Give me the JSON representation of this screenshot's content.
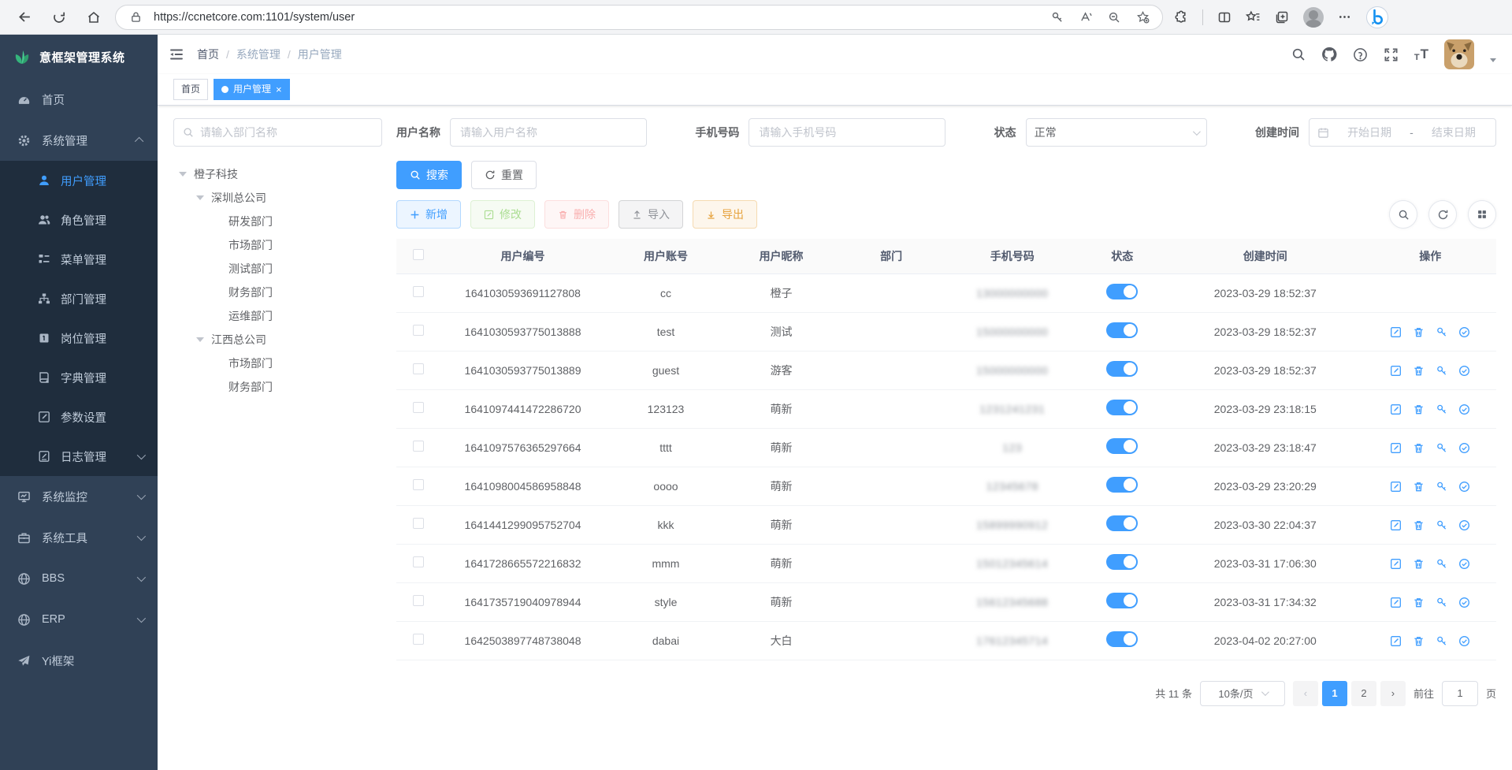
{
  "browser": {
    "url": "https://ccnetcore.com:1101/system/user"
  },
  "colors": {
    "accent": "#409eff",
    "sidebar_bg": "#304156",
    "submenu_bg": "#1f2d3d",
    "success": "#67c23a",
    "danger": "#f56c6c",
    "warning": "#e6a23c",
    "info": "#909399",
    "toggle_on": "#409eff",
    "logo_green": "#35b57c"
  },
  "icons": {
    "logo-icon": "green-leaf",
    "dashboard-icon": "gauge",
    "gear-icon": "gear",
    "user-icon": "person",
    "roles-icon": "people",
    "menu-icon": "tree-list",
    "dept-icon": "org-chart",
    "post-icon": "badge",
    "dict-icon": "book",
    "param-icon": "pencil-square",
    "log-icon": "doc-pencil",
    "monitor-icon": "screen",
    "tools-icon": "briefcase",
    "globe-icon": "globe",
    "plane-icon": "paper-plane",
    "search-icon": "magnifier",
    "refresh-icon": "circular-arrows",
    "grid-icon": "four-squares",
    "plus-icon": "plus",
    "edit-icon": "pencil-square",
    "delete-icon": "trash",
    "import-icon": "arrow-up-line",
    "export-icon": "arrow-down-line",
    "key-icon": "key",
    "check-circle-icon": "circle-check",
    "calendar-icon": "calendar",
    "lock-icon": "padlock",
    "github-icon": "octocat",
    "help-icon": "question-circle",
    "fullscreen-icon": "corner-arrows",
    "fontsize-icon": "tT",
    "copilot-icon": "bing-b"
  },
  "sidebar": {
    "logo_title": "意框架管理系统",
    "items": [
      {
        "label": "首页"
      },
      {
        "label": "系统管理",
        "expanded": true,
        "children": [
          {
            "label": "用户管理",
            "active": true
          },
          {
            "label": "角色管理"
          },
          {
            "label": "菜单管理"
          },
          {
            "label": "部门管理"
          },
          {
            "label": "岗位管理"
          },
          {
            "label": "字典管理"
          },
          {
            "label": "参数设置"
          },
          {
            "label": "日志管理"
          }
        ]
      },
      {
        "label": "系统监控"
      },
      {
        "label": "系统工具"
      },
      {
        "label": "BBS"
      },
      {
        "label": "ERP"
      },
      {
        "label": "Yi框架"
      }
    ]
  },
  "header": {
    "breadcrumb": [
      "首页",
      "系统管理",
      "用户管理"
    ]
  },
  "tabs": [
    {
      "label": "首页",
      "active": false
    },
    {
      "label": "用户管理",
      "active": true
    }
  ],
  "filters": {
    "dept_search_placeholder": "请输入部门名称",
    "username_label": "用户名称",
    "username_placeholder": "请输入用户名称",
    "phone_label": "手机号码",
    "phone_placeholder": "请输入手机号码",
    "status_label": "状态",
    "status_value": "正常",
    "created_label": "创建时间",
    "date_start_placeholder": "开始日期",
    "date_separator": "-",
    "date_end_placeholder": "结束日期",
    "search_button": "搜索",
    "reset_button": "重置"
  },
  "toolbar": {
    "add": "新增",
    "edit": "修改",
    "delete": "删除",
    "import": "导入",
    "export": "导出"
  },
  "tree": {
    "nodes": [
      {
        "label": "橙子科技",
        "level": 0,
        "expandable": true
      },
      {
        "label": "深圳总公司",
        "level": 1,
        "expandable": true
      },
      {
        "label": "研发部门",
        "level": 2,
        "expandable": false
      },
      {
        "label": "市场部门",
        "level": 2,
        "expandable": false
      },
      {
        "label": "测试部门",
        "level": 2,
        "expandable": false
      },
      {
        "label": "财务部门",
        "level": 2,
        "expandable": false
      },
      {
        "label": "运维部门",
        "level": 2,
        "expandable": false
      },
      {
        "label": "江西总公司",
        "level": 1,
        "expandable": true
      },
      {
        "label": "市场部门",
        "level": 2,
        "expandable": false
      },
      {
        "label": "财务部门",
        "level": 2,
        "expandable": false
      }
    ]
  },
  "table": {
    "columns": [
      "用户编号",
      "用户账号",
      "用户昵称",
      "部门",
      "手机号码",
      "状态",
      "创建时间",
      "操作"
    ],
    "rows": [
      {
        "id": "1641030593691127808",
        "account": "cc",
        "nickname": "橙子",
        "dept": "",
        "phone": "13000000000",
        "phone_blurred": true,
        "status_on": true,
        "created": "2023-03-29 18:52:37",
        "ops": false
      },
      {
        "id": "1641030593775013888",
        "account": "test",
        "nickname": "测试",
        "dept": "",
        "phone": "15000000000",
        "phone_blurred": true,
        "status_on": true,
        "created": "2023-03-29 18:52:37",
        "ops": true
      },
      {
        "id": "1641030593775013889",
        "account": "guest",
        "nickname": "游客",
        "dept": "",
        "phone": "15000000000",
        "phone_blurred": true,
        "status_on": true,
        "created": "2023-03-29 18:52:37",
        "ops": true
      },
      {
        "id": "1641097441472286720",
        "account": "123123",
        "nickname": "萌新",
        "dept": "",
        "phone": "1231241231",
        "phone_blurred": true,
        "status_on": true,
        "created": "2023-03-29 23:18:15",
        "ops": true
      },
      {
        "id": "1641097576365297664",
        "account": "tttt",
        "nickname": "萌新",
        "dept": "",
        "phone": "123",
        "phone_blurred": true,
        "status_on": true,
        "created": "2023-03-29 23:18:47",
        "ops": true
      },
      {
        "id": "1641098004586958848",
        "account": "oooo",
        "nickname": "萌新",
        "dept": "",
        "phone": "12345678",
        "phone_blurred": true,
        "status_on": true,
        "created": "2023-03-29 23:20:29",
        "ops": true
      },
      {
        "id": "1641441299095752704",
        "account": "kkk",
        "nickname": "萌新",
        "dept": "",
        "phone": "15899990912",
        "phone_blurred": true,
        "status_on": true,
        "created": "2023-03-30 22:04:37",
        "ops": true
      },
      {
        "id": "1641728665572216832",
        "account": "mmm",
        "nickname": "萌新",
        "dept": "",
        "phone": "15012345614",
        "phone_blurred": true,
        "status_on": true,
        "created": "2023-03-31 17:06:30",
        "ops": true
      },
      {
        "id": "1641735719040978944",
        "account": "style",
        "nickname": "萌新",
        "dept": "",
        "phone": "15612345688",
        "phone_blurred": true,
        "status_on": true,
        "created": "2023-03-31 17:34:32",
        "ops": true
      },
      {
        "id": "1642503897748738048",
        "account": "dabai",
        "nickname": "大白",
        "dept": "",
        "phone": "17612345714",
        "phone_blurred": true,
        "status_on": true,
        "created": "2023-04-02 20:27:00",
        "ops": true
      }
    ]
  },
  "pagination": {
    "total_text": "共 11 条",
    "page_size": "10条/页",
    "prev": "‹",
    "next": "›",
    "pages": [
      "1",
      "2"
    ],
    "active_page": "1",
    "goto_label": "前往",
    "goto_value": "1",
    "page_unit": "页"
  }
}
